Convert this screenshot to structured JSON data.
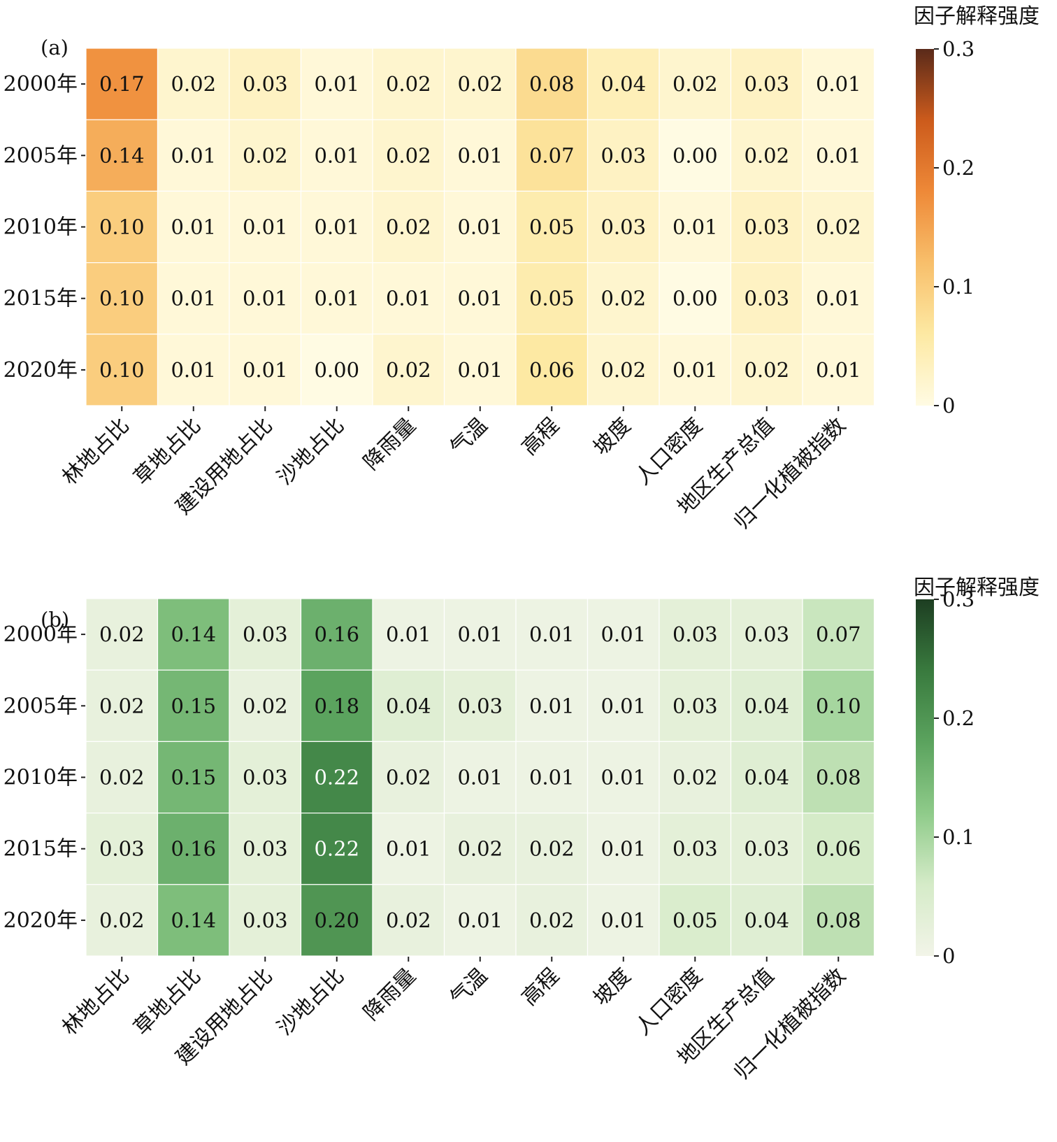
{
  "chart_data": [
    {
      "type": "heatmap",
      "panel_label": "(a)",
      "colorbar_title": "因子解释强度",
      "colorbar_ticks": [
        "0",
        "0.1",
        "0.2",
        "0.3"
      ],
      "vmin": 0,
      "vmax": 0.3,
      "colormap": "YlOrBr",
      "colormap_stops": [
        "#fffbe3",
        "#fde9a3",
        "#f8bf6b",
        "#ee8938",
        "#cc5b1c",
        "#5a2a1a"
      ],
      "rows": [
        "2000年",
        "2005年",
        "2010年",
        "2015年",
        "2020年"
      ],
      "columns": [
        "林地占比",
        "草地占比",
        "建设用地占比",
        "沙地占比",
        "降雨量",
        "气温",
        "高程",
        "坡度",
        "人口密度",
        "地区生产总值",
        "归一化植被指数"
      ],
      "values": [
        [
          0.17,
          0.02,
          0.03,
          0.01,
          0.02,
          0.02,
          0.08,
          0.04,
          0.02,
          0.03,
          0.01
        ],
        [
          0.14,
          0.01,
          0.02,
          0.01,
          0.02,
          0.01,
          0.07,
          0.03,
          0.0,
          0.02,
          0.01
        ],
        [
          0.1,
          0.01,
          0.01,
          0.01,
          0.02,
          0.01,
          0.05,
          0.03,
          0.01,
          0.03,
          0.02
        ],
        [
          0.1,
          0.01,
          0.01,
          0.01,
          0.01,
          0.01,
          0.05,
          0.02,
          0.0,
          0.03,
          0.01
        ],
        [
          0.1,
          0.01,
          0.01,
          0.0,
          0.02,
          0.01,
          0.06,
          0.02,
          0.01,
          0.02,
          0.01
        ]
      ],
      "labels": [
        [
          "0.17",
          "0.02",
          "0.03",
          "0.01",
          "0.02",
          "0.02",
          "0.08",
          "0.04",
          "0.02",
          "0.03",
          "0.01"
        ],
        [
          "0.14",
          "0.01",
          "0.02",
          "0.01",
          "0.02",
          "0.01",
          "0.07",
          "0.03",
          "0.00",
          "0.02",
          "0.01"
        ],
        [
          "0.10",
          "0.01",
          "0.01",
          "0.01",
          "0.02",
          "0.01",
          "0.05",
          "0.03",
          "0.01",
          "0.03",
          "0.02"
        ],
        [
          "0.10",
          "0.01",
          "0.01",
          "0.01",
          "0.01",
          "0.01",
          "0.05",
          "0.02",
          "0.00",
          "0.03",
          "0.01"
        ],
        [
          "0.10",
          "0.01",
          "0.01",
          "0.00",
          "0.02",
          "0.01",
          "0.06",
          "0.02",
          "0.01",
          "0.02",
          "0.01"
        ]
      ]
    },
    {
      "type": "heatmap",
      "panel_label": "(b)",
      "colorbar_title": "因子解释强度",
      "colorbar_ticks": [
        "0",
        "0.1",
        "0.2",
        "0.3"
      ],
      "vmin": 0,
      "vmax": 0.3,
      "colormap": "Greens",
      "colormap_stops": [
        "#f2f4e8",
        "#d5ebc8",
        "#8fcb8a",
        "#5ba35e",
        "#397a3e",
        "#1d3e22"
      ],
      "rows": [
        "2000年",
        "2005年",
        "2010年",
        "2015年",
        "2020年"
      ],
      "columns": [
        "林地占比",
        "草地占比",
        "建设用地占比",
        "沙地占比",
        "降雨量",
        "气温",
        "高程",
        "坡度",
        "人口密度",
        "地区生产总值",
        "归一化植被指数"
      ],
      "values": [
        [
          0.02,
          0.14,
          0.03,
          0.16,
          0.01,
          0.01,
          0.01,
          0.01,
          0.03,
          0.03,
          0.07
        ],
        [
          0.02,
          0.15,
          0.02,
          0.18,
          0.04,
          0.03,
          0.01,
          0.01,
          0.03,
          0.04,
          0.1
        ],
        [
          0.02,
          0.15,
          0.03,
          0.22,
          0.02,
          0.01,
          0.01,
          0.01,
          0.02,
          0.04,
          0.08
        ],
        [
          0.03,
          0.16,
          0.03,
          0.22,
          0.01,
          0.02,
          0.02,
          0.01,
          0.03,
          0.03,
          0.06
        ],
        [
          0.02,
          0.14,
          0.03,
          0.2,
          0.02,
          0.01,
          0.02,
          0.01,
          0.05,
          0.04,
          0.08
        ]
      ],
      "labels": [
        [
          "0.02",
          "0.14",
          "0.03",
          "0.16",
          "0.01",
          "0.01",
          "0.01",
          "0.01",
          "0.03",
          "0.03",
          "0.07"
        ],
        [
          "0.02",
          "0.15",
          "0.02",
          "0.18",
          "0.04",
          "0.03",
          "0.01",
          "0.01",
          "0.03",
          "0.04",
          "0.10"
        ],
        [
          "0.02",
          "0.15",
          "0.03",
          "0.22",
          "0.02",
          "0.01",
          "0.01",
          "0.01",
          "0.02",
          "0.04",
          "0.08"
        ],
        [
          "0.03",
          "0.16",
          "0.03",
          "0.22",
          "0.01",
          "0.02",
          "0.02",
          "0.01",
          "0.03",
          "0.03",
          "0.06"
        ],
        [
          "0.02",
          "0.14",
          "0.03",
          "0.20",
          "0.02",
          "0.01",
          "0.02",
          "0.01",
          "0.05",
          "0.04",
          "0.08"
        ]
      ]
    }
  ]
}
